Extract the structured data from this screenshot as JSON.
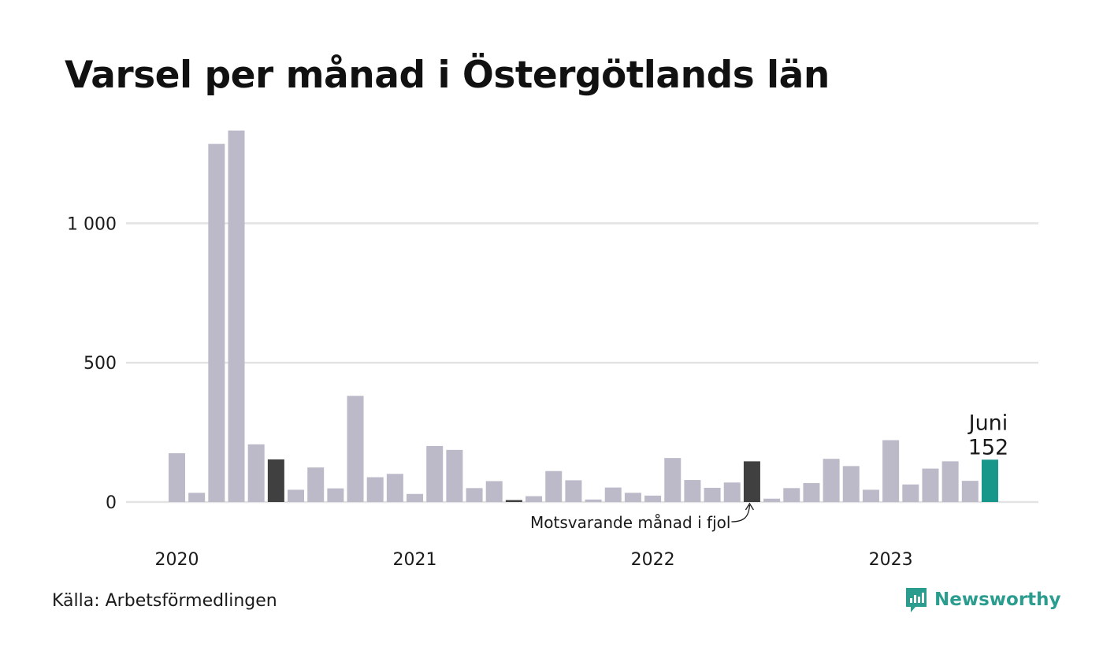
{
  "title": "Varsel per månad i Östergötlands län",
  "source": "Källa: Arbetsförmedlingen",
  "brand": {
    "name": "Newsworthy",
    "icon": "newsworthy-logo-icon",
    "color": "#2a9d8f"
  },
  "colors": {
    "bar": "#bcbac8",
    "highlight_previous_year": "#404040",
    "highlight_current": "#17978a",
    "grid": "#e3e3e3"
  },
  "chart_data": {
    "type": "bar",
    "title": "Varsel per månad i Östergötlands län",
    "xlabel": "",
    "ylabel": "",
    "ylim": [
      0,
      1350
    ],
    "yticks": [
      0,
      500,
      1000
    ],
    "ytick_labels": [
      "0",
      "500",
      "1 000"
    ],
    "xtick_labels": [
      {
        "label": "2020",
        "index": 0
      },
      {
        "label": "2021",
        "index": 12
      },
      {
        "label": "2022",
        "index": 24
      },
      {
        "label": "2023",
        "index": 36
      }
    ],
    "grid": true,
    "categories": [
      "2020-01",
      "2020-02",
      "2020-03",
      "2020-04",
      "2020-05",
      "2020-06",
      "2020-07",
      "2020-08",
      "2020-09",
      "2020-10",
      "2020-11",
      "2020-12",
      "2021-01",
      "2021-02",
      "2021-03",
      "2021-04",
      "2021-05",
      "2021-06",
      "2021-07",
      "2021-08",
      "2021-09",
      "2021-10",
      "2021-11",
      "2021-12",
      "2022-01",
      "2022-02",
      "2022-03",
      "2022-04",
      "2022-05",
      "2022-06",
      "2022-07",
      "2022-08",
      "2022-09",
      "2022-10",
      "2022-11",
      "2022-12",
      "2023-01",
      "2023-02",
      "2023-03",
      "2023-04",
      "2023-05",
      "2023-06"
    ],
    "values": [
      175,
      33,
      1285,
      1333,
      207,
      153,
      44,
      124,
      49,
      381,
      89,
      101,
      29,
      201,
      187,
      50,
      75,
      7,
      21,
      111,
      78,
      9,
      52,
      33,
      23,
      158,
      79,
      51,
      70,
      146,
      12,
      50,
      68,
      155,
      129,
      44,
      222,
      63,
      120,
      146,
      76,
      152
    ],
    "highlights": [
      {
        "index": 5,
        "role": "previous-year"
      },
      {
        "index": 17,
        "role": "previous-year"
      },
      {
        "index": 29,
        "role": "previous-year"
      },
      {
        "index": 41,
        "role": "current"
      }
    ],
    "annotations": [
      {
        "index": 41,
        "lines": [
          "Juni",
          "152"
        ]
      },
      {
        "index": 29,
        "text": "Motsvarande månad i fjol"
      }
    ]
  }
}
